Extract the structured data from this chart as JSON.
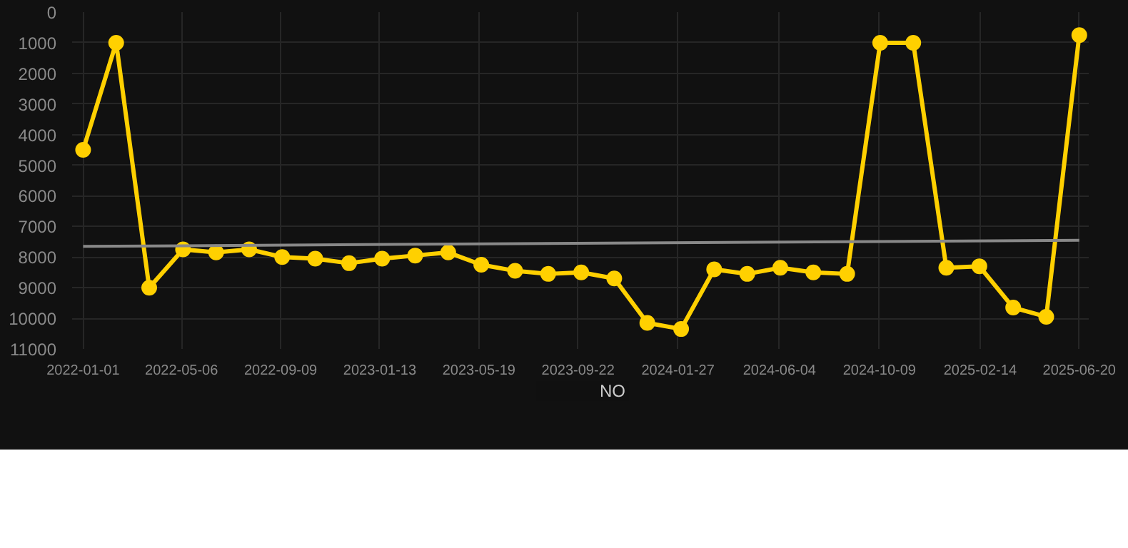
{
  "chart_data": {
    "type": "line",
    "x": [
      "2022-01-01",
      "2022-02-12",
      "2022-03-26",
      "2022-05-08",
      "2022-06-19",
      "2022-07-31",
      "2022-09-11",
      "2022-10-23",
      "2022-12-05",
      "2023-01-16",
      "2023-02-27",
      "2023-04-10",
      "2023-05-22",
      "2023-07-04",
      "2023-08-15",
      "2023-09-26",
      "2023-11-07",
      "2023-12-19",
      "2024-01-31",
      "2024-03-13",
      "2024-04-24",
      "2024-06-05",
      "2024-07-17",
      "2024-08-29",
      "2024-10-10",
      "2024-11-21",
      "2025-01-02",
      "2025-02-13",
      "2025-03-28",
      "2025-05-09",
      "2025-06-20"
    ],
    "series": [
      {
        "name": "NO",
        "color": "#ffd000",
        "marker": "circle",
        "values": [
          4500,
          1000,
          9000,
          7750,
          7850,
          7750,
          8000,
          8050,
          8200,
          8050,
          7950,
          7850,
          8250,
          8450,
          8550,
          8500,
          8700,
          10150,
          10350,
          8400,
          8550,
          8350,
          8500,
          8550,
          1000,
          1000,
          8350,
          8300,
          9650,
          9950,
          750
        ]
      },
      {
        "type": "line",
        "color": "#888888",
        "marker": "none",
        "x": [
          "2022-01-01",
          "2025-06-20"
        ],
        "values": [
          7650,
          7450
        ]
      }
    ],
    "xlim": [
      "2021-12-18",
      "2025-07-02"
    ],
    "ylim": [
      11000,
      0
    ],
    "xticks": [
      {
        "value": "2022-01-01",
        "label": "2022-01-01"
      },
      {
        "value": "2022-05-06",
        "label": "2022-05-06"
      },
      {
        "value": "2022-09-09",
        "label": "2022-09-09"
      },
      {
        "value": "2023-01-13",
        "label": "2023-01-13"
      },
      {
        "value": "2023-05-19",
        "label": "2023-05-19"
      },
      {
        "value": "2023-09-22",
        "label": "2023-09-22"
      },
      {
        "value": "2024-01-27",
        "label": "2024-01-27"
      },
      {
        "value": "2024-06-04",
        "label": "2024-06-04"
      },
      {
        "value": "2024-10-09",
        "label": "2024-10-09"
      },
      {
        "value": "2025-02-14",
        "label": "2025-02-14"
      },
      {
        "value": "2025-06-20",
        "label": "2025-06-20"
      }
    ],
    "yticks": [
      0,
      1000,
      2000,
      3000,
      4000,
      5000,
      6000,
      7000,
      8000,
      9000,
      10000,
      11000
    ],
    "grid": true,
    "legend": "bottom",
    "line_style": "solid"
  }
}
